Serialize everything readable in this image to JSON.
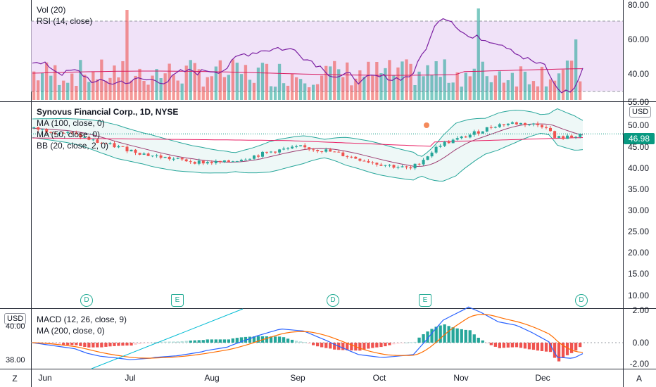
{
  "colors": {
    "up": "#26a69a",
    "down": "#ef5350",
    "rsi_line": "#7b1fa2",
    "rsi_band": "#e9d5f5",
    "ma100": "#880e4f",
    "ma50": "#880e4f",
    "bb": "#26a69a",
    "macd": "#2962ff",
    "signal": "#ff6d00",
    "price_tag": "#089981"
  },
  "indicator_pane": {
    "legend": [
      "Vol (20)",
      "RSI (14, close)"
    ],
    "axis_labels": [
      "80.00",
      "60.00",
      "40.00"
    ]
  },
  "price_pane": {
    "legend": [
      "Synovus Financial Corp., 1D, NYSE",
      "MA (100, close, 0)",
      "MA (50, close, 0)",
      "BB (20, close, 2, 0)"
    ],
    "currency": "USD",
    "last_price": "46.98",
    "axis_labels": [
      "55.00",
      "50.00",
      "45.00",
      "40.00",
      "35.00",
      "30.00",
      "25.00",
      "20.00",
      "15.00",
      "10.00"
    ],
    "events": [
      {
        "label": "D",
        "kind": "dividend"
      },
      {
        "label": "E",
        "kind": "earnings"
      },
      {
        "label": "D",
        "kind": "dividend"
      },
      {
        "label": "E",
        "kind": "earnings"
      },
      {
        "label": "D",
        "kind": "dividend"
      }
    ]
  },
  "macd_pane": {
    "legend": [
      "MACD (12, 26, close, 9)",
      "MA (200, close, 0)"
    ],
    "currency": "USD",
    "left_labels": [
      "40.00",
      "38.00"
    ],
    "axis_labels": [
      "2.00",
      "0.00",
      "-2.00"
    ]
  },
  "time_axis": [
    "Jun",
    "Jul",
    "Aug",
    "Sep",
    "Oct",
    "Nov",
    "Dec"
  ],
  "corner_buttons": {
    "left": "Z",
    "right": "A"
  }
}
